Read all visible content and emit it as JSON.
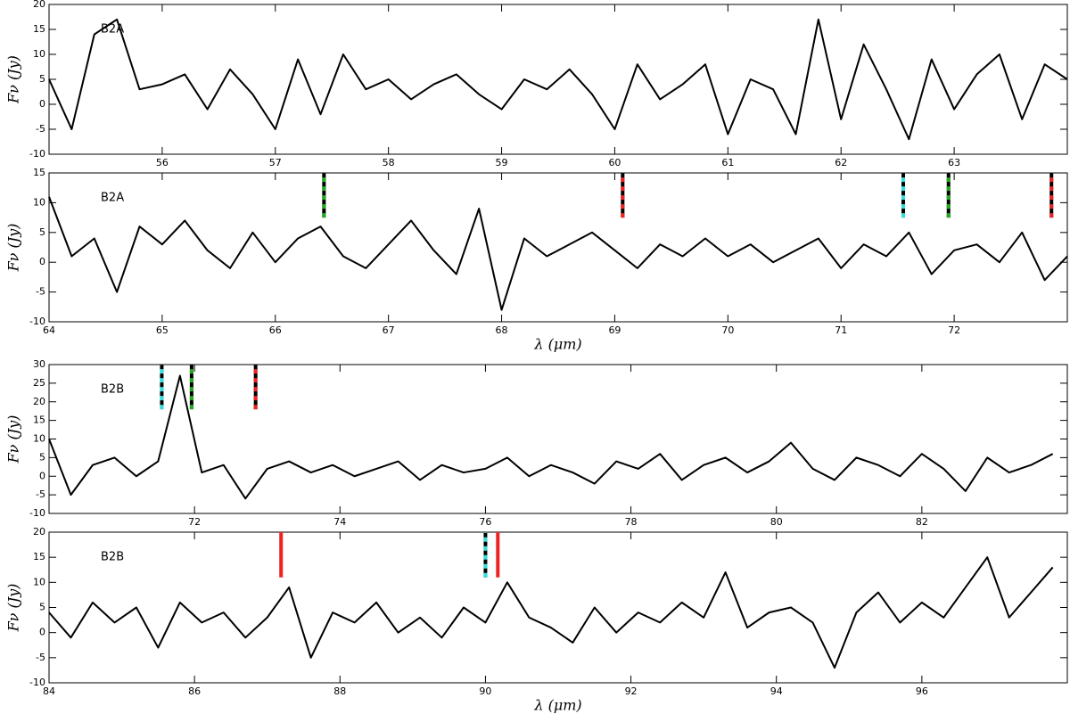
{
  "chart_data": [
    {
      "type": "line",
      "label": "B2A",
      "ylabel": "Fν (Jy)",
      "x": [
        55,
        55.2,
        55.4,
        55.6,
        55.8,
        56,
        56.2,
        56.4,
        56.6,
        56.8,
        57,
        57.2,
        57.4,
        57.6,
        57.8,
        58,
        58.2,
        58.4,
        58.6,
        58.8,
        59,
        59.2,
        59.4,
        59.6,
        59.8,
        60,
        60.2,
        60.4,
        60.6,
        60.8,
        61,
        61.2,
        61.4,
        61.6,
        61.8,
        62,
        62.2,
        62.4,
        62.6,
        62.8,
        63,
        63.2,
        63.4,
        63.6,
        63.8,
        64
      ],
      "series": [
        {
          "color": "#000000",
          "values": [
            5,
            -5,
            14,
            17,
            3,
            4,
            6,
            -1,
            7,
            2,
            -5,
            9,
            -2,
            10,
            3,
            5,
            1,
            4,
            6,
            2,
            -1,
            5,
            3,
            7,
            2,
            -5,
            8,
            1,
            4,
            8,
            -6,
            5,
            3,
            -6,
            17,
            -3,
            12,
            3,
            -7,
            9,
            -1,
            6,
            10,
            -3,
            8,
            5
          ]
        }
      ],
      "xlim": [
        55,
        64
      ],
      "xticks": [
        56,
        57,
        58,
        59,
        60,
        61,
        62,
        63
      ],
      "ylim": [
        -10,
        20
      ],
      "yticks": [
        -10,
        -5,
        0,
        5,
        10,
        15,
        20
      ],
      "markers": []
    },
    {
      "type": "line",
      "label": "B2A",
      "ylabel": "Fν (Jy)",
      "xlabel": "λ (μm)",
      "x": [
        64,
        64.2,
        64.4,
        64.6,
        64.8,
        65,
        65.2,
        65.4,
        65.6,
        65.8,
        66,
        66.2,
        66.4,
        66.6,
        66.8,
        67,
        67.2,
        67.4,
        67.6,
        67.8,
        68,
        68.2,
        68.4,
        68.6,
        68.8,
        69,
        69.2,
        69.4,
        69.6,
        69.8,
        70,
        70.2,
        70.4,
        70.6,
        70.8,
        71,
        71.2,
        71.4,
        71.6,
        71.8,
        72,
        72.2,
        72.4,
        72.6,
        72.8,
        73
      ],
      "series": [
        {
          "color": "#000000",
          "values": [
            11,
            1,
            4,
            -5,
            6,
            3,
            7,
            2,
            -1,
            5,
            0,
            4,
            6,
            1,
            -1,
            3,
            7,
            2,
            -2,
            9,
            -8,
            4,
            1,
            3,
            5,
            2,
            -1,
            3,
            1,
            4,
            1,
            3,
            0,
            2,
            4,
            -1,
            3,
            1,
            5,
            -2,
            2,
            3,
            0,
            5,
            -3,
            1
          ]
        }
      ],
      "xlim": [
        64,
        73
      ],
      "xticks": [
        64,
        65,
        66,
        67,
        68,
        69,
        70,
        71,
        72
      ],
      "ylim": [
        -10,
        15
      ],
      "yticks": [
        -10,
        -5,
        0,
        5,
        10,
        15
      ],
      "markers": [
        {
          "x": 66.43,
          "color": "#22aa22",
          "style": "dashed",
          "y": [
            7.5,
            15
          ]
        },
        {
          "x": 69.07,
          "color": "#ee2222",
          "style": "dashed",
          "y": [
            7.5,
            15
          ]
        },
        {
          "x": 71.55,
          "color": "#33dddd",
          "style": "dashed",
          "y": [
            7.5,
            15
          ]
        },
        {
          "x": 71.95,
          "color": "#22aa22",
          "style": "dashed",
          "y": [
            7.5,
            15
          ]
        },
        {
          "x": 72.86,
          "color": "#ee2222",
          "style": "dashed",
          "y": [
            7.5,
            15
          ]
        }
      ]
    },
    {
      "type": "line",
      "label": "B2B",
      "ylabel": "Fν (Jy)",
      "x": [
        70,
        70.3,
        70.6,
        70.9,
        71.2,
        71.5,
        71.8,
        72.1,
        72.4,
        72.7,
        73,
        73.3,
        73.6,
        73.9,
        74.2,
        74.5,
        74.8,
        75.1,
        75.4,
        75.7,
        76,
        76.3,
        76.6,
        76.9,
        77.2,
        77.5,
        77.8,
        78.1,
        78.4,
        78.7,
        79,
        79.3,
        79.6,
        79.9,
        80.2,
        80.5,
        80.8,
        81.1,
        81.4,
        81.7,
        82,
        82.3,
        82.6,
        82.9,
        83.2,
        83.5,
        83.8
      ],
      "series": [
        {
          "color": "#000000",
          "values": [
            10,
            -5,
            3,
            5,
            0,
            4,
            27,
            1,
            3,
            -6,
            2,
            4,
            1,
            3,
            0,
            2,
            4,
            -1,
            3,
            1,
            2,
            5,
            0,
            3,
            1,
            -2,
            4,
            2,
            6,
            -1,
            3,
            5,
            1,
            4,
            9,
            2,
            -1,
            5,
            3,
            0,
            6,
            2,
            -4,
            5,
            1,
            3,
            6
          ]
        }
      ],
      "xlim": [
        70,
        84
      ],
      "xticks": [
        72,
        74,
        76,
        78,
        80,
        82
      ],
      "ylim": [
        -10,
        30
      ],
      "yticks": [
        -10,
        -5,
        0,
        5,
        10,
        15,
        20,
        25,
        30
      ],
      "markers": [
        {
          "x": 71.55,
          "color": "#33dddd",
          "style": "dashed",
          "y": [
            18,
            30
          ]
        },
        {
          "x": 71.96,
          "color": "#22aa22",
          "style": "dashed",
          "y": [
            18,
            30
          ]
        },
        {
          "x": 72.84,
          "color": "#ee2222",
          "style": "dashed",
          "y": [
            18,
            30
          ]
        }
      ]
    },
    {
      "type": "line",
      "label": "B2B",
      "ylabel": "Fν (Jy)",
      "xlabel": "λ (μm)",
      "x": [
        84,
        84.3,
        84.6,
        84.9,
        85.2,
        85.5,
        85.8,
        86.1,
        86.4,
        86.7,
        87,
        87.3,
        87.6,
        87.9,
        88.2,
        88.5,
        88.8,
        89.1,
        89.4,
        89.7,
        90,
        90.3,
        90.6,
        90.9,
        91.2,
        91.5,
        91.8,
        92.1,
        92.4,
        92.7,
        93,
        93.3,
        93.6,
        93.9,
        94.2,
        94.5,
        94.8,
        95.1,
        95.4,
        95.7,
        96,
        96.3,
        96.6,
        96.9,
        97.2,
        97.5,
        97.8
      ],
      "series": [
        {
          "color": "#000000",
          "values": [
            4,
            -1,
            6,
            2,
            5,
            -3,
            6,
            2,
            4,
            -1,
            3,
            9,
            -5,
            4,
            2,
            6,
            0,
            3,
            -1,
            5,
            2,
            10,
            3,
            1,
            -2,
            5,
            0,
            4,
            2,
            6,
            3,
            12,
            1,
            4,
            5,
            2,
            -7,
            4,
            8,
            2,
            6,
            3,
            9,
            15,
            3,
            8,
            13
          ]
        }
      ],
      "xlim": [
        84,
        98
      ],
      "xticks": [
        84,
        86,
        88,
        90,
        92,
        94,
        96
      ],
      "ylim": [
        -10,
        20
      ],
      "yticks": [
        -10,
        -5,
        0,
        5,
        10,
        15,
        20
      ],
      "markers": [
        {
          "x": 87.19,
          "color": "#ee2222",
          "style": "solid",
          "y": [
            11,
            20
          ]
        },
        {
          "x": 90.0,
          "color": "#33dddd",
          "style": "dashed",
          "y": [
            11,
            20
          ]
        },
        {
          "x": 90.17,
          "color": "#ee2222",
          "style": "solid",
          "y": [
            11,
            20
          ]
        }
      ]
    }
  ]
}
